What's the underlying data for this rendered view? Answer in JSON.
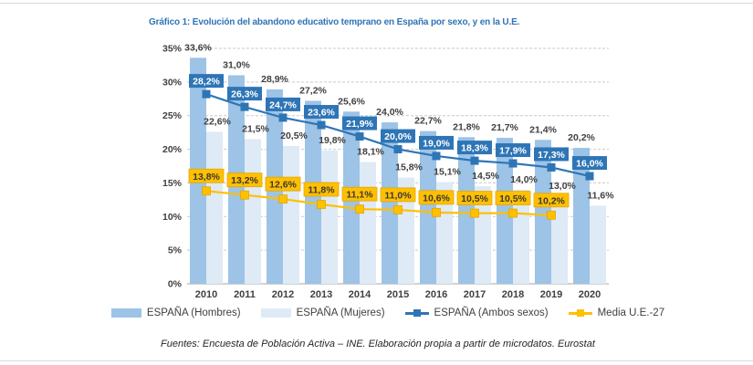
{
  "page": {
    "title": "Gráfico 1: Evolución del abandono educativo temprano en España por sexo, y en la U.E.",
    "source_note": "Fuentes: Encuesta de Población Activa – INE. Elaboración propia a partir de microdatos. Eurostat"
  },
  "colors": {
    "title": "#2e74b5",
    "bar_hombres": "#9dc3e6",
    "bar_mujeres": "#deeaf6",
    "line_ambos": "#2e75b6",
    "line_ue": "#ffc000",
    "ue_box_border": "#e3a600",
    "label_text": "#404040",
    "gridline": "#c9c9c9",
    "axis_line": "#a6a6a6"
  },
  "chart_data": {
    "type": "bar",
    "subtype": "grouped bars with two overlay lines",
    "title": "Gráfico 1: Evolución del abandono educativo temprano en España por sexo, y en la U.E.",
    "categories": [
      "2010",
      "2011",
      "2012",
      "2013",
      "2014",
      "2015",
      "2016",
      "2017",
      "2018",
      "2019",
      "2020"
    ],
    "series": [
      {
        "name": "ESPAÑA (Hombres)",
        "type": "bar",
        "color": "#9dc3e6",
        "values": [
          33.6,
          31.0,
          28.9,
          27.2,
          25.6,
          24.0,
          22.7,
          21.8,
          21.7,
          21.4,
          20.2
        ],
        "labels": [
          "33,6%",
          "31,0%",
          "28,9%",
          "27,2%",
          "25,6%",
          "24,0%",
          "22,7%",
          "21,8%",
          "21,7%",
          "21,4%",
          "20,2%"
        ]
      },
      {
        "name": "ESPAÑA (Mujeres)",
        "type": "bar",
        "color": "#deeaf6",
        "values": [
          22.6,
          21.5,
          20.5,
          19.8,
          18.1,
          15.8,
          15.1,
          14.5,
          14.0,
          13.0,
          11.6
        ],
        "labels": [
          "22,6%",
          "21,5%",
          "20,5%",
          "19,8%",
          "18,1%",
          "15,8%",
          "15,1%",
          "14,5%",
          "14,0%",
          "13,0%",
          "11,6%"
        ]
      },
      {
        "name": "ESPAÑA (Ambos sexos)",
        "type": "line",
        "color": "#2e75b6",
        "values": [
          28.2,
          26.3,
          24.7,
          23.6,
          21.9,
          20.0,
          19.0,
          18.3,
          17.9,
          17.3,
          16.0
        ],
        "labels": [
          "28,2%",
          "26,3%",
          "24,7%",
          "23,6%",
          "21,9%",
          "20,0%",
          "19,0%",
          "18,3%",
          "17,9%",
          "17,3%",
          "16,0%"
        ]
      },
      {
        "name": "Media U.E.-27",
        "type": "line",
        "color": "#ffc000",
        "values": [
          13.8,
          13.2,
          12.6,
          11.8,
          11.1,
          11.0,
          10.6,
          10.5,
          10.5,
          10.2,
          null
        ],
        "labels": [
          "13,8%",
          "13,2%",
          "12,6%",
          "11,8%",
          "11,1%",
          "11,0%",
          "10,6%",
          "10,5%",
          "10,5%",
          "10,2%",
          null
        ]
      }
    ],
    "xlabel": "",
    "ylabel": "",
    "ylim": [
      0,
      35
    ],
    "y_tick_step": 5,
    "y_tick_labels": [
      "0%",
      "5%",
      "10%",
      "15%",
      "20%",
      "25%",
      "30%",
      "35%"
    ],
    "grid": "horizontal dashed",
    "legend_position": "bottom",
    "source_note": "Fuentes: Encuesta de Población Activa – INE. Elaboración propia a partir de microdatos. Eurostat"
  }
}
